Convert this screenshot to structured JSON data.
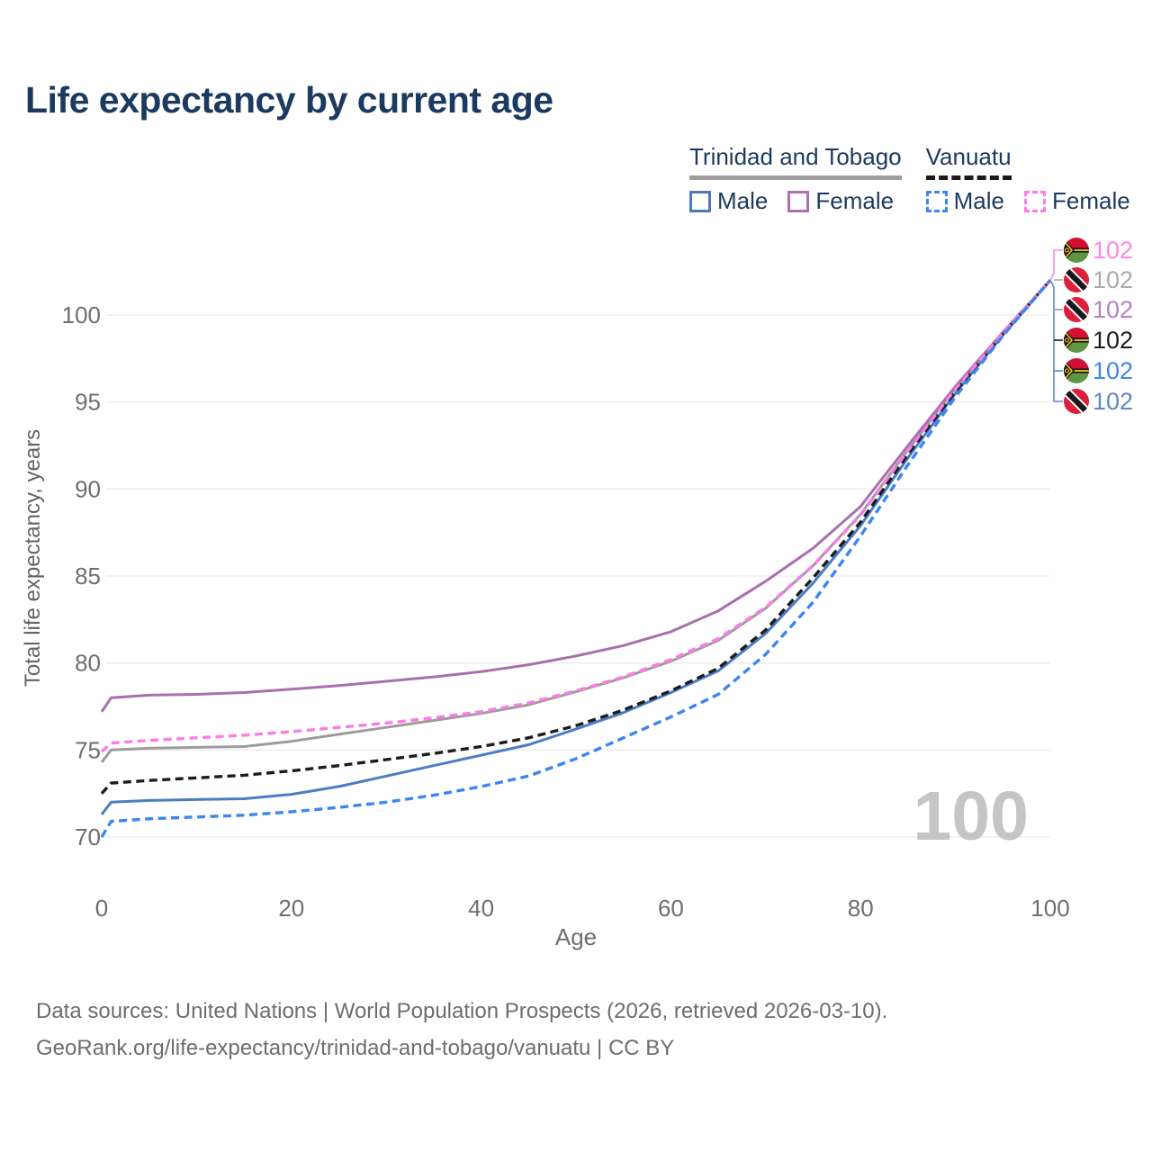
{
  "title": "Life expectancy by current age",
  "legend": {
    "groups": [
      {
        "label": "Trinidad and Tobago",
        "line_style": "solid",
        "underline_color": "#9e9e9e",
        "items": [
          {
            "label": "Male",
            "color": "#4e79b8",
            "dashed": false
          },
          {
            "label": "Female",
            "color": "#ad6fae",
            "dashed": false
          }
        ]
      },
      {
        "label": "Vanuatu",
        "line_style": "dashed",
        "underline_color": "#1a1a1a",
        "items": [
          {
            "label": "Male",
            "color": "#3c86f0",
            "dashed": true
          },
          {
            "label": "Female",
            "color": "#fa7de8",
            "dashed": true
          }
        ]
      }
    ]
  },
  "watermark": "100",
  "footer": {
    "line1": "Data sources: United Nations | World Population Prospects (2026, retrieved 2026-03-10).",
    "line2": "GeoRank.org/life-expectancy/trinidad-and-tobago/vanuatu | CC BY"
  },
  "chart_data": {
    "type": "line",
    "title": "Life expectancy by current age",
    "xlabel": "Age",
    "ylabel": "Total life expectancy, years",
    "xlim": [
      0,
      100
    ],
    "ylim": [
      70,
      102
    ],
    "xticks": [
      0,
      20,
      40,
      60,
      80,
      100
    ],
    "yticks": [
      70,
      75,
      80,
      85,
      90,
      95,
      100
    ],
    "grid": true,
    "legend_position": "top-right",
    "x": [
      0,
      1,
      5,
      10,
      15,
      20,
      25,
      30,
      35,
      40,
      45,
      50,
      55,
      60,
      65,
      70,
      75,
      80,
      85,
      90,
      95,
      100
    ],
    "series": [
      {
        "name": "Trinidad and Tobago Male",
        "country": "Trinidad and Tobago",
        "sex": "male",
        "color": "#4a7dc4",
        "dashed": false,
        "values": [
          71.3,
          72.0,
          72.1,
          72.15,
          72.2,
          72.45,
          72.9,
          73.5,
          74.1,
          74.7,
          75.3,
          76.2,
          77.15,
          78.3,
          79.55,
          81.7,
          84.6,
          87.9,
          91.8,
          95.5,
          98.85,
          102
        ]
      },
      {
        "name": "Trinidad and Tobago",
        "country": "Trinidad and Tobago",
        "sex": "both",
        "color": "#9c9c9c",
        "dashed": false,
        "values": [
          74.3,
          75.0,
          75.1,
          75.15,
          75.2,
          75.5,
          75.9,
          76.3,
          76.7,
          77.1,
          77.6,
          78.35,
          79.15,
          80.1,
          81.3,
          83.15,
          85.6,
          88.55,
          92.25,
          95.8,
          99.0,
          102
        ]
      },
      {
        "name": "Trinidad and Tobago Female",
        "country": "Trinidad and Tobago",
        "sex": "female",
        "color": "#aa6fae",
        "dashed": false,
        "values": [
          77.2,
          78.0,
          78.15,
          78.2,
          78.3,
          78.5,
          78.7,
          78.95,
          79.2,
          79.5,
          79.9,
          80.4,
          81.0,
          81.8,
          83.0,
          84.7,
          86.6,
          89.0,
          92.5,
          95.9,
          99.0,
          102
        ]
      },
      {
        "name": "Vanuatu",
        "country": "Vanuatu",
        "sex": "both",
        "color": "#1c1c1c",
        "dashed": true,
        "values": [
          72.5,
          73.1,
          73.25,
          73.4,
          73.55,
          73.8,
          74.1,
          74.45,
          74.8,
          75.2,
          75.7,
          76.4,
          77.3,
          78.4,
          79.7,
          81.9,
          84.9,
          88.1,
          92.0,
          95.6,
          98.9,
          102
        ]
      },
      {
        "name": "Vanuatu Female",
        "country": "Vanuatu",
        "sex": "female",
        "color": "#fb7ce6",
        "dashed": true,
        "values": [
          74.9,
          75.4,
          75.55,
          75.7,
          75.85,
          76.05,
          76.3,
          76.55,
          76.85,
          77.2,
          77.7,
          78.4,
          79.2,
          80.2,
          81.4,
          83.2,
          85.6,
          88.5,
          92.2,
          95.75,
          98.95,
          102
        ]
      },
      {
        "name": "Vanuatu Male",
        "country": "Vanuatu",
        "sex": "male",
        "color": "#3c86ef",
        "dashed": true,
        "values": [
          70.0,
          70.9,
          71.05,
          71.15,
          71.25,
          71.45,
          71.7,
          72.0,
          72.4,
          72.9,
          73.5,
          74.5,
          75.7,
          76.9,
          78.2,
          80.5,
          83.5,
          87.3,
          91.4,
          95.3,
          98.8,
          102
        ]
      }
    ],
    "end_labels": [
      {
        "value": "102",
        "flag": "vu",
        "series": "Vanuatu Female",
        "color": "#fc86ea"
      },
      {
        "value": "102",
        "flag": "tt",
        "series": "Trinidad and Tobago",
        "color": "#ababab"
      },
      {
        "value": "102",
        "flag": "tt",
        "series": "Trinidad and Tobago Female",
        "color": "#b57fc2"
      },
      {
        "value": "102",
        "flag": "vu",
        "series": "Vanuatu",
        "color": "#1c1c1c"
      },
      {
        "value": "102",
        "flag": "vu",
        "series": "Vanuatu Male",
        "color": "#3d87ea"
      },
      {
        "value": "102",
        "flag": "tt",
        "series": "Trinidad and Tobago Male",
        "color": "#5d89c6"
      }
    ]
  }
}
